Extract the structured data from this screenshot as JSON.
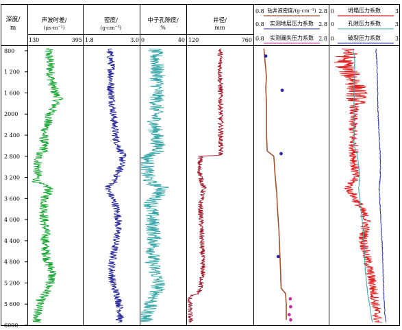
{
  "chart_data": {
    "type": "line",
    "depth_axis": {
      "label_line1": "深度/",
      "label_line2": "m",
      "ticks": [
        800,
        1200,
        1600,
        2000,
        2400,
        2800,
        3200,
        3600,
        4000,
        4400,
        4800,
        5200,
        5600,
        6000
      ],
      "tick_labels": [
        "800",
        "1 200",
        "1 600",
        "2000",
        "2 400",
        "2 800",
        "3 200",
        "3 600",
        "4 000",
        "4 400",
        "4 800",
        "5 200",
        "5 600",
        "6000"
      ],
      "range": [
        710,
        6000
      ]
    },
    "tracks": [
      {
        "title_line1": "声波时差/",
        "title_line2": "(μs·m⁻¹)",
        "scale_min": "130",
        "scale_max": "395",
        "range": [
          130,
          395
        ],
        "series": [
          {
            "color": "#1aa836",
            "depth": [
              760,
              1000,
              1300,
              1600,
              1700,
              2000,
              2400,
              2700,
              2750,
              3000,
              3300,
              3400,
              3600,
              4000,
              4200,
              4500,
              4800,
              5000,
              5200,
              5400,
              5500,
              5700,
              5950
            ],
            "values": [
              225,
              235,
              240,
              260,
              280,
              235,
              205,
              205,
              180,
              175,
              170,
              235,
              210,
              205,
              215,
              210,
              225,
              250,
              235,
              215,
              190,
              175,
              170
            ]
          }
        ]
      },
      {
        "title_line1": "密度/",
        "title_line2": "(g·cm⁻³)",
        "scale_min": "1.8",
        "scale_max": "3.0",
        "range": [
          1.8,
          3.0
        ],
        "series": [
          {
            "color": "#2a2a9a",
            "depth": [
              760,
              1100,
              1500,
              1800,
              2100,
              2500,
              2800,
              3000,
              3300,
              3400,
              3700,
              4000,
              4300,
              4600,
              4900,
              5200,
              5500,
              5800,
              5950
            ],
            "values": [
              2.35,
              2.4,
              2.38,
              2.42,
              2.45,
              2.5,
              2.65,
              2.6,
              2.45,
              2.3,
              2.48,
              2.55,
              2.52,
              2.45,
              2.4,
              2.42,
              2.55,
              2.6,
              2.55
            ]
          }
        ]
      },
      {
        "title_line1": "中子孔隙度/",
        "title_line2": "%",
        "scale_min": "0",
        "scale_max": "40",
        "range": [
          0,
          40
        ],
        "series": [
          {
            "color": "#3aa8aa",
            "depth": [
              760,
              1000,
              1400,
              1800,
              2200,
              2700,
              2800,
              3100,
              3300,
              3400,
              3700,
              4000,
              4400,
              4800,
              5000,
              5200,
              5400,
              5600,
              5950
            ],
            "values": [
              12,
              14,
              15,
              14,
              12,
              16,
              6,
              5,
              8,
              20,
              9,
              10,
              12,
              10,
              13,
              16,
              14,
              8,
              3
            ]
          }
        ]
      },
      {
        "title_line1": "井径/",
        "title_line2": "mm",
        "scale_min": "120",
        "scale_max": "760",
        "range": [
          120,
          760
        ],
        "series": [
          {
            "color": "#a0182a",
            "depth": [
              760,
              1200,
              1800,
              2400,
              2780,
              2800,
              3000,
              3300,
              3400,
              3700,
              4200,
              4700,
              5000,
              5300,
              5400,
              5450,
              5700,
              5950
            ],
            "values": [
              440,
              440,
              445,
              445,
              445,
              250,
              230,
              260,
              280,
              245,
              255,
              265,
              270,
              245,
              225,
              140,
              140,
              150
            ]
          }
        ]
      },
      {
        "legend": [
          {
            "min": "0.8",
            "label": "钻井液密度/(g·cm⁻³)",
            "max": "2.8",
            "color": "#a0522d"
          },
          {
            "min": "0.8",
            "label": "实测地层压力系数",
            "max": "2.8",
            "color": "#2a2aa8"
          },
          {
            "min": "0.8",
            "label": "实测漏失压力系数",
            "max": "2.8",
            "color": "#c0309a"
          }
        ],
        "range": [
          0.8,
          2.8
        ],
        "series": [
          {
            "color": "#a0522d",
            "depth": [
              760,
              1000,
              1300,
              1500,
              1800,
              2400,
              2700,
              2800,
              3200,
              3500,
              3800,
              4200,
              4900,
              5300,
              5400,
              5600,
              5900
            ],
            "values": [
              1.05,
              1.08,
              1.12,
              1.1,
              1.12,
              1.12,
              1.14,
              1.32,
              1.36,
              1.4,
              1.42,
              1.46,
              1.5,
              1.52,
              1.64,
              1.66,
              1.66
            ]
          }
        ],
        "points": [
          {
            "color": "#2a2aa8",
            "depth": [
              900,
              1550,
              2750,
              4700
            ],
            "values": [
              1.1,
              1.55,
              1.52,
              1.44
            ]
          },
          {
            "color": "#c0309a",
            "depth": [
              5500,
              5650,
              5800,
              5900
            ],
            "values": [
              1.77,
              1.78,
              1.74,
              1.78
            ]
          }
        ]
      },
      {
        "legend": [
          {
            "min": "0",
            "label": "坍塌压力系数",
            "max": "3",
            "color": "#e02020"
          },
          {
            "min": "0",
            "label": "孔隙压力系数",
            "max": "3",
            "color": "#3aa8aa"
          },
          {
            "min": "0",
            "label": "破裂压力系数",
            "max": "3",
            "color": "#2a2aa8"
          }
        ],
        "range": [
          0,
          3
        ],
        "series": [
          {
            "color": "#e02020",
            "depth": [
              760,
              1000,
              1200,
              1400,
              1600,
              2000,
              2400,
              2800,
              3200,
              3400,
              3700,
              4000,
              4400,
              4800,
              5200,
              5500,
              5800,
              5950
            ],
            "values": [
              0.9,
              0.6,
              0.8,
              1.1,
              1.2,
              1.0,
              1.0,
              1.05,
              1.1,
              0.8,
              1.25,
              1.6,
              1.45,
              1.65,
              1.85,
              1.95,
              2.05,
              2.1
            ]
          },
          {
            "color": "#3aa8aa",
            "depth": [
              760,
              1000,
              1400,
              2000,
              2600,
              2800,
              3200,
              3400,
              3800,
              4200,
              4600,
              5000,
              5400,
              5800,
              5950
            ],
            "values": [
              1.0,
              1.08,
              1.05,
              1.05,
              1.05,
              1.2,
              1.3,
              1.25,
              1.35,
              1.45,
              1.5,
              1.55,
              1.65,
              1.8,
              1.85
            ]
          },
          {
            "color": "#2a2aa8",
            "depth": [
              760,
              1000,
              1500,
              2000,
              2400,
              2800,
              3200,
              3400,
              3800,
              4200,
              4600,
              5000,
              5400,
              5800,
              5950
            ],
            "values": [
              2.0,
              2.05,
              2.08,
              2.1,
              2.15,
              2.2,
              2.2,
              2.15,
              2.2,
              2.25,
              2.3,
              2.32,
              2.35,
              2.4,
              2.45
            ]
          }
        ]
      }
    ]
  }
}
